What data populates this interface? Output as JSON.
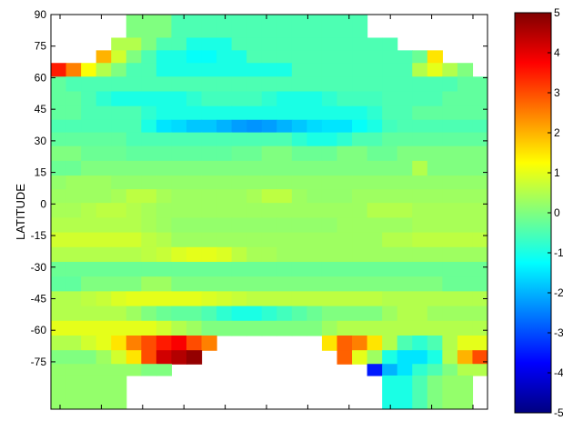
{
  "chart_data": {
    "type": "heatmap",
    "title": "",
    "xlabel": "",
    "ylabel": "LATITUDE",
    "ylim": [
      -90,
      90
    ],
    "y_ticks": [
      "90",
      "75",
      "60",
      "45",
      "30",
      "15",
      "0",
      "-15",
      "-30",
      "-45",
      "-60",
      "-75"
    ],
    "x_tick_count": 11,
    "colorbar": {
      "colormap": "jet",
      "range": [
        -5,
        5
      ],
      "tick_labels": [
        "5",
        "4",
        "3",
        "2",
        "1",
        "0",
        "-1",
        "-2",
        "-3",
        "-4",
        "-5"
      ]
    },
    "latitude_rows": [
      {
        "lat": 82,
        "values": [
          null,
          null,
          null,
          null,
          null,
          0,
          0,
          0,
          -0.5,
          -0.5,
          -0.5,
          -0.5,
          -0.5,
          -0.5,
          -0.5,
          -0.5,
          -0.5,
          -0.5,
          -0.5,
          -0.5,
          -0.5,
          null,
          null,
          null,
          null,
          null,
          null,
          null,
          null
        ]
      },
      {
        "lat": 76,
        "values": [
          null,
          null,
          null,
          null,
          0.5,
          0.5,
          0,
          -0.5,
          -0.5,
          -1,
          -1,
          -1,
          -0.5,
          -0.5,
          -0.5,
          -0.5,
          -0.5,
          -0.5,
          -0.5,
          -0.5,
          -0.5,
          -0.5,
          -0.5,
          null,
          null,
          null,
          null,
          null,
          null
        ]
      },
      {
        "lat": 70,
        "values": [
          null,
          null,
          null,
          2,
          0.8,
          0,
          -0.5,
          -1,
          -1,
          -1.2,
          -1.2,
          -1,
          -1,
          -0.5,
          -0.5,
          -0.5,
          -0.5,
          -0.5,
          -0.5,
          -0.5,
          -0.5,
          -0.5,
          -0.5,
          -0.5,
          -0.2,
          1.5,
          null,
          null,
          null
        ]
      },
      {
        "lat": 64,
        "values": [
          3.5,
          2.5,
          1.2,
          0.5,
          0,
          -0.5,
          -0.5,
          -1,
          -1,
          -1,
          -1,
          -1,
          -1,
          -1,
          -1,
          -1,
          -0.5,
          -0.5,
          -0.5,
          -0.5,
          -0.5,
          -0.5,
          -0.5,
          -0.5,
          0.5,
          1,
          0.5,
          0,
          null
        ]
      },
      {
        "lat": 57,
        "values": [
          -0.3,
          -0.5,
          -0.5,
          -0.5,
          -0.5,
          -0.5,
          -0.5,
          -0.5,
          -0.5,
          -0.5,
          -0.5,
          -0.5,
          -0.5,
          -0.5,
          -0.5,
          -0.5,
          -0.5,
          -0.5,
          -0.5,
          -0.5,
          -0.5,
          -0.5,
          -0.5,
          -0.5,
          -0.5,
          -0.5,
          -0.5,
          -0.3,
          -0.3
        ]
      },
      {
        "lat": 50,
        "values": [
          -0.3,
          -0.3,
          -0.5,
          -0.8,
          -1,
          -1,
          -1,
          -1,
          -1,
          -0.8,
          -0.6,
          -0.6,
          -0.6,
          -0.6,
          -0.8,
          -1,
          -1,
          -1,
          -0.8,
          -0.6,
          -0.6,
          -0.6,
          -0.5,
          -0.5,
          -0.5,
          -0.5,
          -0.3,
          -0.3,
          -0.3
        ]
      },
      {
        "lat": 43,
        "values": [
          -0.3,
          -0.3,
          -0.5,
          -0.5,
          -0.5,
          -0.5,
          -0.8,
          -1,
          -1,
          -1,
          -1,
          -1,
          -1,
          -1,
          -1,
          -1,
          -1,
          -1,
          -1,
          -1,
          -1,
          -0.8,
          -0.5,
          -0.5,
          -0.3,
          -0.3,
          -0.3,
          -0.3,
          -0.3
        ]
      },
      {
        "lat": 37,
        "values": [
          -0.5,
          -0.5,
          -0.5,
          -0.5,
          -0.5,
          -0.5,
          -1,
          -1.5,
          -1.6,
          -1.8,
          -1.8,
          -2,
          -2.2,
          -2.3,
          -2.2,
          -2,
          -1.8,
          -1.6,
          -1.5,
          -1.5,
          -1.2,
          -1,
          -0.6,
          -0.5,
          -0.5,
          -0.5,
          -0.5,
          -0.5,
          -0.5
        ]
      },
      {
        "lat": 31,
        "values": [
          -0.3,
          -0.3,
          -0.3,
          -0.3,
          -0.3,
          -0.5,
          -0.5,
          -0.5,
          -0.5,
          -0.5,
          -0.5,
          -0.5,
          -0.5,
          -0.5,
          -0.5,
          -0.5,
          -0.8,
          -1,
          -1,
          -0.8,
          -0.5,
          -0.5,
          -0.3,
          -0.3,
          -0.3,
          -0.3,
          -0.3,
          -0.3,
          -0.3
        ]
      },
      {
        "lat": 24,
        "values": [
          0,
          0,
          -0.2,
          -0.2,
          -0.2,
          -0.3,
          -0.3,
          -0.3,
          -0.3,
          -0.3,
          -0.3,
          -0.3,
          -0.2,
          -0.2,
          0,
          0,
          -0.2,
          -0.2,
          -0.2,
          0,
          0,
          -0.2,
          -0.2,
          0,
          0,
          0,
          0,
          0,
          0
        ]
      },
      {
        "lat": 17,
        "values": [
          -0.2,
          -0.2,
          0,
          0,
          0,
          0,
          0,
          0,
          0,
          0,
          0,
          0,
          0,
          0,
          0,
          0,
          0,
          0,
          0,
          0,
          0,
          0,
          0,
          0,
          0.5,
          0,
          0,
          0,
          0
        ]
      },
      {
        "lat": 10,
        "values": [
          0.2,
          0.3,
          0.3,
          0.3,
          0.2,
          0.2,
          0.2,
          0.2,
          0.2,
          0.2,
          0.2,
          0.2,
          0.2,
          0.2,
          0.2,
          0.2,
          0.2,
          0.2,
          0.2,
          0.2,
          0.2,
          0.2,
          0.2,
          0.2,
          0.2,
          0.2,
          0.2,
          0.2,
          0.2
        ]
      },
      {
        "lat": 4,
        "values": [
          0.3,
          0.3,
          0.3,
          0.3,
          0.4,
          0.6,
          0.6,
          0.4,
          0.3,
          0.3,
          0.3,
          0.3,
          0.3,
          0.4,
          0.6,
          0.6,
          0.3,
          0.2,
          0.2,
          0.2,
          0.3,
          0.3,
          0.3,
          0.3,
          0.3,
          0.3,
          0.3,
          0.3,
          0.3
        ]
      },
      {
        "lat": -3,
        "values": [
          0.4,
          0.4,
          0.5,
          0.6,
          0.6,
          0.5,
          0.4,
          0.3,
          0.3,
          0.3,
          0.3,
          0.3,
          0.3,
          0.3,
          0.3,
          0.3,
          0.3,
          0.3,
          0.3,
          0.3,
          0.3,
          0.5,
          0.5,
          0.5,
          0.4,
          0.4,
          0.4,
          0.4,
          0.4
        ]
      },
      {
        "lat": -10,
        "values": [
          0.5,
          0.5,
          0.5,
          0.5,
          0.5,
          0.5,
          0.4,
          0.3,
          0.2,
          0.2,
          0.2,
          0.2,
          0.2,
          0.2,
          0.2,
          0.2,
          0.2,
          0.2,
          0.2,
          0.3,
          0.3,
          0.3,
          0.3,
          0.3,
          0.4,
          0.4,
          0.4,
          0.4,
          0.4
        ]
      },
      {
        "lat": -17,
        "values": [
          0.8,
          0.8,
          0.8,
          0.8,
          0.8,
          0.8,
          0.6,
          0.5,
          0.3,
          0.3,
          0.3,
          0.3,
          0.3,
          0.3,
          0.3,
          0.3,
          0.3,
          0.3,
          0.3,
          0.3,
          0.3,
          0.3,
          0.5,
          0.5,
          0.6,
          0.6,
          0.6,
          0.6,
          0.6
        ]
      },
      {
        "lat": -24,
        "values": [
          0.5,
          0.5,
          0.5,
          0.5,
          0.5,
          0.5,
          0.6,
          0.7,
          0.9,
          1,
          1,
          0.9,
          0.6,
          0.4,
          0.4,
          0.3,
          0.3,
          0.3,
          0.3,
          0.3,
          0.3,
          0.3,
          0.3,
          0.3,
          0.3,
          0.3,
          0.3,
          0.3,
          0.3
        ]
      },
      {
        "lat": -31,
        "values": [
          -0.2,
          -0.2,
          -0.2,
          -0.2,
          -0.2,
          -0.2,
          -0.2,
          -0.2,
          -0.2,
          -0.2,
          -0.2,
          -0.2,
          -0.2,
          -0.2,
          -0.2,
          -0.2,
          -0.2,
          -0.2,
          -0.2,
          -0.2,
          -0.2,
          -0.2,
          -0.2,
          -0.2,
          -0.2,
          -0.2,
          -0.2,
          -0.2,
          -0.2
        ]
      },
      {
        "lat": -38,
        "values": [
          -0.3,
          -0.3,
          0,
          0,
          0,
          0,
          0.3,
          0.3,
          0,
          0,
          0,
          0,
          0,
          0,
          0,
          0,
          0,
          0,
          0,
          0,
          0,
          0,
          0,
          0,
          0,
          0,
          -0.2,
          -0.2,
          -0.2
        ]
      },
      {
        "lat": -45,
        "values": [
          0.5,
          0.5,
          0.6,
          0.7,
          0.9,
          1,
          1,
          1,
          1,
          1,
          0.9,
          0.8,
          0.7,
          0.6,
          0.6,
          0.6,
          0.6,
          0.6,
          0.6,
          0.6,
          0.6,
          0.6,
          0.5,
          0.5,
          0.5,
          0.5,
          0.5,
          0.5,
          0.5
        ]
      },
      {
        "lat": -52,
        "values": [
          0.5,
          0.5,
          0.5,
          0.5,
          0.5,
          0.3,
          0,
          -0.2,
          -0.3,
          -0.3,
          -0.5,
          -0.8,
          -1,
          -1,
          -0.8,
          -0.6,
          -0.4,
          -0.2,
          0,
          0,
          0,
          0,
          0.3,
          0.5,
          0.5,
          0.3,
          0.3,
          0.3,
          0.3
        ]
      },
      {
        "lat": -59,
        "values": [
          1,
          1,
          1,
          1,
          1,
          1,
          1,
          0.8,
          0.5,
          0.3,
          0,
          0,
          0,
          0,
          0,
          0,
          0,
          0,
          0.3,
          0.5,
          0.5,
          0.5,
          0.5,
          0.5,
          0.5,
          0.5,
          0.5,
          0.5,
          0.5
        ]
      },
      {
        "lat": -66,
        "values": [
          0.5,
          0.5,
          0.8,
          1,
          1.5,
          2.5,
          3,
          3.5,
          3.8,
          3,
          2.5,
          null,
          null,
          null,
          null,
          null,
          null,
          null,
          1.5,
          2.8,
          2.5,
          1.5,
          0.5,
          -0.5,
          -0.8,
          -0.5,
          0.5,
          1,
          1
        ]
      },
      {
        "lat": -73,
        "values": [
          0,
          0,
          0,
          0.3,
          0.8,
          1.5,
          3,
          4.2,
          4.5,
          4.8,
          null,
          null,
          null,
          null,
          null,
          null,
          null,
          null,
          null,
          2.8,
          1,
          0.3,
          -1,
          -1.5,
          -1.5,
          -1,
          0.5,
          2,
          3
        ]
      },
      {
        "lat": -79,
        "values": [
          0.2,
          0.2,
          0.2,
          0.2,
          0.2,
          0.2,
          0,
          0,
          null,
          null,
          null,
          null,
          null,
          null,
          null,
          null,
          null,
          null,
          null,
          null,
          null,
          -3.5,
          -2,
          -1.5,
          -0.8,
          -0.5,
          0,
          0.5,
          0.5
        ]
      },
      {
        "lat": -84,
        "values": [
          0.2,
          0.2,
          0.2,
          0.2,
          0.2,
          null,
          null,
          null,
          null,
          null,
          null,
          null,
          null,
          null,
          null,
          null,
          null,
          null,
          null,
          null,
          null,
          null,
          -1,
          -1,
          -0.5,
          0,
          0.2,
          0.2,
          null
        ]
      }
    ]
  }
}
